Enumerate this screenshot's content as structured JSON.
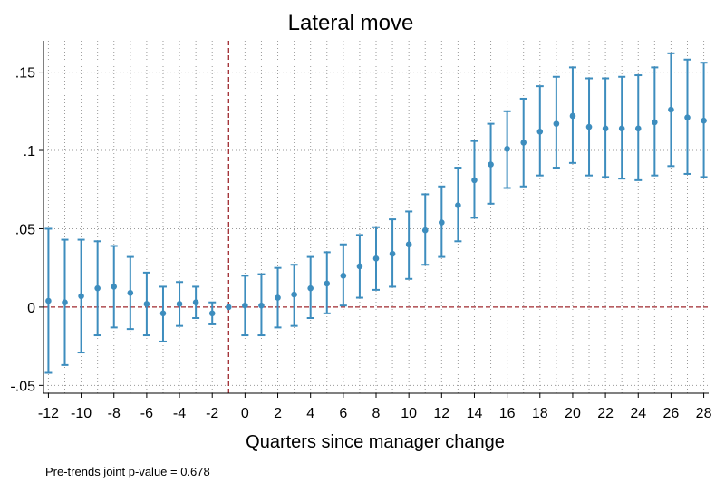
{
  "chart_data": {
    "type": "scatter",
    "title": "Lateral move",
    "xlabel": "Quarters since manager change",
    "ylabel": "",
    "note": "Pre-trends joint p-value = 0.678",
    "xlim": [
      -12.3,
      28.3
    ],
    "ylim": [
      -0.055,
      0.17
    ],
    "x_ticks": [
      -12,
      -10,
      -8,
      -6,
      -4,
      -2,
      0,
      2,
      4,
      6,
      8,
      10,
      12,
      14,
      16,
      18,
      20,
      22,
      24,
      26,
      28
    ],
    "x_tick_labels": [
      "-12",
      "-10",
      "-8",
      "-6",
      "-4",
      "-2",
      "0",
      "2",
      "4",
      "6",
      "8",
      "10",
      "12",
      "14",
      "16",
      "18",
      "20",
      "22",
      "24",
      "26",
      "28"
    ],
    "y_ticks": [
      -0.05,
      0,
      0.05,
      0.1,
      0.15
    ],
    "y_tick_labels": [
      "-.05",
      "0",
      ".05",
      ".1",
      ".15"
    ],
    "grid": true,
    "reference_lines": {
      "x": -1,
      "y": 0
    },
    "series": [
      {
        "x": [
          -12,
          -11,
          -10,
          -9,
          -8,
          -7,
          -6,
          -5,
          -4,
          -3,
          -2,
          -1,
          0,
          1,
          2,
          3,
          4,
          5,
          6,
          7,
          8,
          9,
          10,
          11,
          12,
          13,
          14,
          15,
          16,
          17,
          18,
          19,
          20,
          21,
          22,
          23,
          24,
          25,
          26,
          27,
          28
        ],
        "estimate": [
          0.004,
          0.003,
          0.007,
          0.012,
          0.013,
          0.009,
          0.002,
          -0.004,
          0.002,
          0.003,
          -0.004,
          0.0,
          0.001,
          0.001,
          0.006,
          0.008,
          0.012,
          0.015,
          0.02,
          0.026,
          0.031,
          0.034,
          0.04,
          0.049,
          0.054,
          0.065,
          0.081,
          0.091,
          0.101,
          0.105,
          0.112,
          0.117,
          0.122,
          0.115,
          0.114,
          0.114,
          0.114,
          0.118,
          0.126,
          0.121,
          0.119
        ],
        "ci_low": [
          -0.042,
          -0.037,
          -0.029,
          -0.018,
          -0.013,
          -0.014,
          -0.018,
          -0.022,
          -0.012,
          -0.007,
          -0.011,
          0.0,
          -0.018,
          -0.018,
          -0.013,
          -0.012,
          -0.007,
          -0.004,
          0.001,
          0.006,
          0.011,
          0.013,
          0.018,
          0.027,
          0.032,
          0.042,
          0.057,
          0.066,
          0.076,
          0.077,
          0.084,
          0.089,
          0.092,
          0.084,
          0.083,
          0.082,
          0.081,
          0.084,
          0.09,
          0.085,
          0.083
        ],
        "ci_high": [
          0.05,
          0.043,
          0.043,
          0.042,
          0.039,
          0.032,
          0.022,
          0.013,
          0.016,
          0.013,
          0.003,
          0.0,
          0.02,
          0.021,
          0.025,
          0.027,
          0.032,
          0.035,
          0.04,
          0.046,
          0.051,
          0.056,
          0.061,
          0.072,
          0.077,
          0.089,
          0.106,
          0.117,
          0.125,
          0.133,
          0.141,
          0.147,
          0.153,
          0.146,
          0.146,
          0.147,
          0.148,
          0.153,
          0.162,
          0.158,
          0.156
        ]
      }
    ],
    "colors": {
      "series": "#3d8dbe",
      "refline": "#a0292f",
      "grid": "#9a9a9a",
      "axis": "#000000"
    }
  }
}
